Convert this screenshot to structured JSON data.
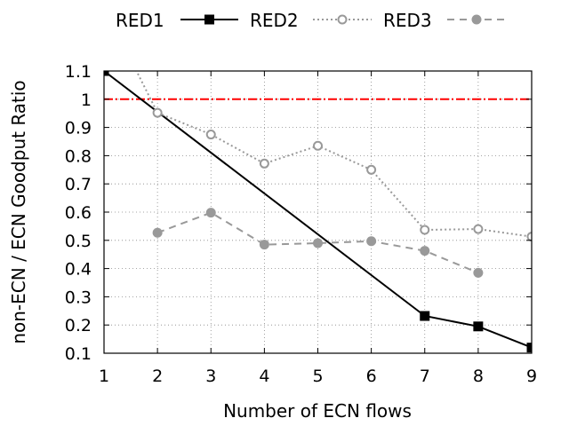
{
  "chart_data": {
    "type": "line",
    "title": "",
    "xlabel": "Number of ECN flows",
    "ylabel": "non-ECN / ECN Goodput Ratio",
    "xlim": [
      1,
      9
    ],
    "ylim": [
      0.1,
      1.1
    ],
    "x_ticks": [
      "1",
      "2",
      "3",
      "4",
      "5",
      "6",
      "7",
      "8",
      "9"
    ],
    "y_ticks": [
      "0.1",
      "0.2",
      "0.3",
      "0.4",
      "0.5",
      "0.6",
      "0.7",
      "0.8",
      "0.9",
      "1",
      "1.1"
    ],
    "grid": true,
    "legend_position": "top",
    "reference_line": {
      "y": 1,
      "color": "#ff0000",
      "style": "dash-dot"
    },
    "series": [
      {
        "name": "RED1",
        "color": "#000000",
        "line_style": "solid",
        "marker": "filled-square",
        "x": [
          1,
          7,
          8,
          9
        ],
        "y": [
          1.1,
          0.232,
          0.195,
          0.12
        ]
      },
      {
        "name": "RED2",
        "color": "#999999",
        "line_style": "dotted",
        "marker": "open-circle",
        "x": [
          1,
          2,
          3,
          4,
          5,
          6,
          7,
          8,
          9
        ],
        "y": [
          1.33,
          0.952,
          0.875,
          0.772,
          0.835,
          0.75,
          0.537,
          0.54,
          0.513
        ]
      },
      {
        "name": "RED3",
        "color": "#999999",
        "line_style": "dashed",
        "marker": "filled-circle",
        "x": [
          2,
          3,
          4,
          5,
          6,
          7,
          8
        ],
        "y": [
          0.527,
          0.598,
          0.485,
          0.49,
          0.497,
          0.463,
          0.385
        ]
      }
    ]
  }
}
